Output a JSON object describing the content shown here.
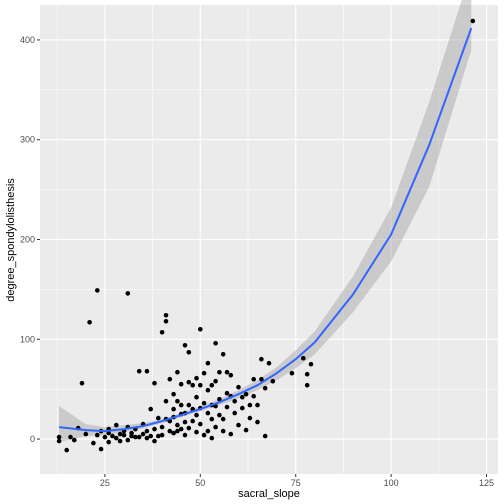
{
  "chart_data": {
    "type": "scatter",
    "xlabel": "sacral_slope",
    "ylabel": "degree_spondylolisthesis",
    "xlim": [
      8,
      128
    ],
    "ylim": [
      -35,
      435
    ],
    "xticks": [
      25,
      50,
      75,
      100,
      125
    ],
    "yticks": [
      0,
      100,
      200,
      300,
      400
    ],
    "grid": true,
    "colors": {
      "panel": "#ebebeb",
      "grid": "#ffffff",
      "points": "#000000",
      "smooth_line": "#3366ff",
      "ribbon": "#999999"
    },
    "smooth": {
      "method": "polynomial fit with confidence band",
      "x": [
        13,
        20,
        25,
        30,
        35,
        40,
        45,
        50,
        55,
        60,
        65,
        70,
        75,
        80,
        90,
        100,
        110,
        121
      ],
      "y": [
        12,
        9,
        8,
        10,
        13,
        18,
        24,
        30,
        37,
        45,
        54,
        66,
        80,
        97,
        145,
        205,
        295,
        412
      ],
      "lower": [
        -3,
        3,
        4,
        7,
        11,
        16,
        22,
        28,
        34,
        41,
        49,
        59,
        71,
        85,
        127,
        178,
        253,
        390
      ],
      "upper": [
        33,
        15,
        12,
        14,
        16,
        20,
        26,
        33,
        40,
        49,
        59,
        72,
        89,
        108,
        163,
        232,
        338,
        470
      ]
    },
    "points": [
      [
        121.4,
        419
      ],
      [
        13,
        -2
      ],
      [
        13,
        2
      ],
      [
        15,
        -11
      ],
      [
        16,
        2
      ],
      [
        17,
        -1
      ],
      [
        18,
        11
      ],
      [
        19,
        56
      ],
      [
        20,
        5
      ],
      [
        21,
        117
      ],
      [
        22,
        -4
      ],
      [
        23,
        4
      ],
      [
        23,
        149
      ],
      [
        24,
        -10
      ],
      [
        24,
        8
      ],
      [
        25,
        2
      ],
      [
        26,
        6
      ],
      [
        26,
        -3
      ],
      [
        26,
        10
      ],
      [
        27,
        3
      ],
      [
        28,
        1
      ],
      [
        28,
        14
      ],
      [
        29,
        5
      ],
      [
        29,
        -2
      ],
      [
        30,
        8
      ],
      [
        30,
        4
      ],
      [
        31,
        146
      ],
      [
        31,
        -1
      ],
      [
        31,
        12
      ],
      [
        32,
        6
      ],
      [
        32,
        3
      ],
      [
        33,
        10
      ],
      [
        33,
        2
      ],
      [
        34,
        2
      ],
      [
        34,
        68
      ],
      [
        35,
        5
      ],
      [
        35,
        15
      ],
      [
        36,
        8
      ],
      [
        36,
        68
      ],
      [
        36,
        1
      ],
      [
        37,
        30
      ],
      [
        37,
        3
      ],
      [
        38,
        56
      ],
      [
        38,
        10
      ],
      [
        38,
        -2
      ],
      [
        39,
        21
      ],
      [
        39,
        3
      ],
      [
        40,
        107
      ],
      [
        40,
        4
      ],
      [
        40,
        12
      ],
      [
        41,
        118
      ],
      [
        41,
        124
      ],
      [
        41,
        38
      ],
      [
        41,
        20
      ],
      [
        42,
        8
      ],
      [
        42,
        18
      ],
      [
        42,
        60
      ],
      [
        43,
        22
      ],
      [
        43,
        6
      ],
      [
        43,
        45
      ],
      [
        43,
        30
      ],
      [
        44,
        67
      ],
      [
        44,
        14
      ],
      [
        44,
        38
      ],
      [
        44,
        8
      ],
      [
        45,
        34
      ],
      [
        45,
        25
      ],
      [
        45,
        10
      ],
      [
        45,
        55
      ],
      [
        46,
        94
      ],
      [
        46,
        26
      ],
      [
        46,
        17
      ],
      [
        46,
        4
      ],
      [
        47,
        87
      ],
      [
        47,
        57
      ],
      [
        47,
        34
      ],
      [
        47,
        11
      ],
      [
        48,
        54
      ],
      [
        48,
        18
      ],
      [
        48,
        30
      ],
      [
        49,
        61
      ],
      [
        49,
        42
      ],
      [
        49,
        7
      ],
      [
        49,
        24
      ],
      [
        50,
        110
      ],
      [
        50,
        31
      ],
      [
        50,
        54
      ],
      [
        50,
        15
      ],
      [
        51,
        36
      ],
      [
        51,
        66
      ],
      [
        51,
        4
      ],
      [
        52,
        49
      ],
      [
        52,
        26
      ],
      [
        52,
        8
      ],
      [
        52,
        76
      ],
      [
        53,
        34
      ],
      [
        53,
        54
      ],
      [
        53,
        20
      ],
      [
        53,
        1
      ],
      [
        54,
        96
      ],
      [
        54,
        58
      ],
      [
        54,
        33
      ],
      [
        54,
        12
      ],
      [
        55,
        40
      ],
      [
        55,
        67
      ],
      [
        55,
        24
      ],
      [
        56,
        85
      ],
      [
        56,
        20
      ],
      [
        56,
        8
      ],
      [
        57,
        46
      ],
      [
        57,
        67
      ],
      [
        57,
        32
      ],
      [
        58,
        5
      ],
      [
        58,
        43
      ],
      [
        58,
        64
      ],
      [
        59,
        26
      ],
      [
        59,
        38
      ],
      [
        60,
        52
      ],
      [
        60,
        14
      ],
      [
        61,
        31
      ],
      [
        61,
        42
      ],
      [
        62,
        45
      ],
      [
        62,
        9
      ],
      [
        63,
        21
      ],
      [
        63,
        34
      ],
      [
        64,
        43
      ],
      [
        64,
        60
      ],
      [
        65,
        34
      ],
      [
        65,
        17
      ],
      [
        66,
        80
      ],
      [
        66,
        60
      ],
      [
        67,
        3
      ],
      [
        67,
        51
      ],
      [
        68,
        76
      ],
      [
        69,
        58
      ],
      [
        74,
        66
      ],
      [
        77,
        81
      ],
      [
        78,
        65
      ],
      [
        78,
        54
      ],
      [
        79,
        75
      ]
    ]
  }
}
